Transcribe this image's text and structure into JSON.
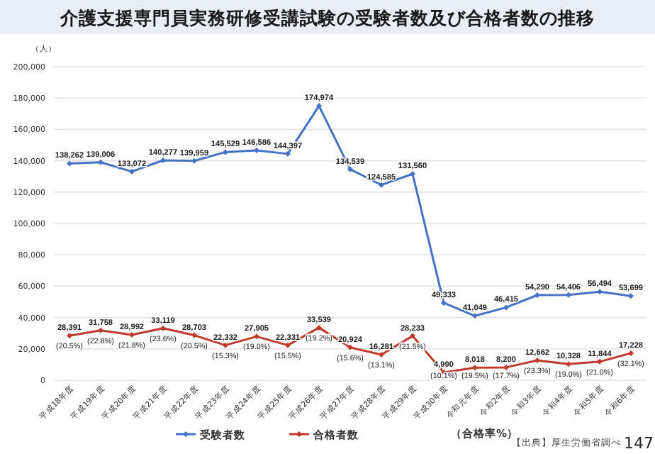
{
  "chart_data": {
    "type": "line",
    "title": "介護支援専門員実務研修受講試験の受験者数及び合格者数の推移",
    "ylabel": "（人）",
    "categories": [
      "平成18年度",
      "平成19年度",
      "平成20年度",
      "平成21年度",
      "平成22年度",
      "平成23年度",
      "平成24年度",
      "平成25年度",
      "平成26年度",
      "平成27年度",
      "平成28年度",
      "平成29年度",
      "平成30年度",
      "令和元年度",
      "令和2年度",
      "令和3年度",
      "令和4年度",
      "令和5年度",
      "令和6年度"
    ],
    "series": [
      {
        "name": "受験者数",
        "color": "#4472c4",
        "values": [
          138262,
          139006,
          133072,
          140277,
          139959,
          145529,
          146586,
          144397,
          174974,
          134539,
          124585,
          131560,
          49333,
          41049,
          46415,
          54290,
          54406,
          56494,
          53699
        ],
        "value_labels": [
          "138,262",
          "139,006",
          "133,072",
          "140,277",
          "139,959",
          "145,529",
          "146,586",
          "144,397",
          "174,974",
          "134,539",
          "124,585",
          "131,560",
          "49,333",
          "41,049",
          "46,415",
          "54,290",
          "54,406",
          "56,494",
          "53,699"
        ]
      },
      {
        "name": "合格者数",
        "color": "#c0392b",
        "values": [
          28391,
          31758,
          28992,
          33119,
          28703,
          22332,
          27905,
          22331,
          33539,
          20924,
          16281,
          28233,
          4990,
          8018,
          8200,
          12662,
          10328,
          11844,
          17228
        ],
        "value_labels": [
          "28,391",
          "31,758",
          "28,992",
          "33,119",
          "28,703",
          "22,332",
          "27,905",
          "22,331",
          "33,539",
          "20,924",
          "16,281",
          "28,233",
          "4,990",
          "8,018",
          "8,200",
          "12,662",
          "10,328",
          "11,844",
          "17,228"
        ]
      }
    ],
    "ylim": [
      0,
      200000
    ],
    "yticks": [
      0,
      {
        "value": 20000,
        "label": "20,000"
      },
      {
        "value": 40000,
        "label": "40,000"
      },
      {
        "value": 60000,
        "label": "60,000"
      },
      {
        "value": 80000,
        "label": "80,000"
      },
      {
        "value": 100000,
        "label": "100,000"
      },
      {
        "value": 120000,
        "label": "120,000"
      },
      {
        "value": 140000,
        "label": "140,000"
      },
      {
        "value": 160000,
        "label": "160,000"
      },
      {
        "value": 180000,
        "label": "180,000"
      },
      {
        "value": 200000,
        "label": "200,000"
      }
    ],
    "grid": "y",
    "legend": "bottom",
    "marker": "diamond",
    "line_style": "solid",
    "annotations": [
      {
        "text": "(20.5%)",
        "x": "平成18年度",
        "y": 28391
      },
      {
        "text": "(22.8%)",
        "x": "平成19年度",
        "y": 31758
      },
      {
        "text": "(21.8%)",
        "x": "平成20年度",
        "y": 28992
      },
      {
        "text": "(23.6%)",
        "x": "平成21年度",
        "y": 33119
      },
      {
        "text": "(20.5%)",
        "x": "平成22年度",
        "y": 28703
      },
      {
        "text": "(15.3%)",
        "x": "平成23年度",
        "y": 22332
      },
      {
        "text": "(19.0%)",
        "x": "平成24年度",
        "y": 27905
      },
      {
        "text": "(15.5%)",
        "x": "平成25年度",
        "y": 22331
      },
      {
        "text": "(19.2%)",
        "x": "平成26年度",
        "y": 33539
      },
      {
        "text": "(15.6%)",
        "x": "平成27年度",
        "y": 20924
      },
      {
        "text": "(13.1%)",
        "x": "平成28年度",
        "y": 16281
      },
      {
        "text": "(21.5%)",
        "x": "平成29年度",
        "y": 28233
      },
      {
        "text": "(10.1%)",
        "x": "平成30年度",
        "y": 4990
      },
      {
        "text": "(19.5%)",
        "x": "令和元年度",
        "y": 8018
      },
      {
        "text": "(17.7%)",
        "x": "令和2年度",
        "y": 8200
      },
      {
        "text": "(23.3%)",
        "x": "令和3年度",
        "y": 12662
      },
      {
        "text": "(19.0%)",
        "x": "令和4年度",
        "y": 10328
      },
      {
        "text": "(21.0%)",
        "x": "令和5年度",
        "y": 11844
      },
      {
        "text": "(32.1%)",
        "x": "令和6年度",
        "y": 17228
      },
      "（合格率%）",
      "【出典】厚生労働省調べ",
      "147"
    ]
  }
}
